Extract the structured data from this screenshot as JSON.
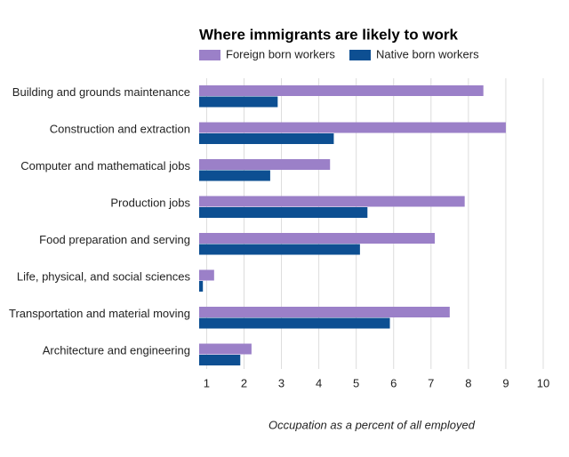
{
  "chart_data": {
    "type": "bar",
    "orientation": "horizontal",
    "title": "Where immigrants are likely to work",
    "x_label": "Occupation as a percent of all employed",
    "categories": [
      "Building and grounds maintenance",
      "Construction and extraction",
      "Computer and mathematical jobs",
      "Production jobs",
      "Food preparation and serving",
      "Life, physical, and social sciences",
      "Transportation and material moving",
      "Architecture and engineering"
    ],
    "series": [
      {
        "name": "Foreign born workers",
        "color": "#9b80c8",
        "values": [
          8.4,
          9.0,
          4.3,
          7.9,
          7.1,
          1.2,
          7.5,
          2.2
        ]
      },
      {
        "name": "Native born workers",
        "color": "#0d4f92",
        "values": [
          2.9,
          4.4,
          2.7,
          5.3,
          5.1,
          0.9,
          5.9,
          1.9
        ]
      }
    ],
    "xlim": [
      0.8,
      10
    ],
    "xticks": [
      1,
      2,
      3,
      4,
      5,
      6,
      7,
      8,
      9,
      10
    ],
    "grid": true,
    "legend": "top"
  }
}
